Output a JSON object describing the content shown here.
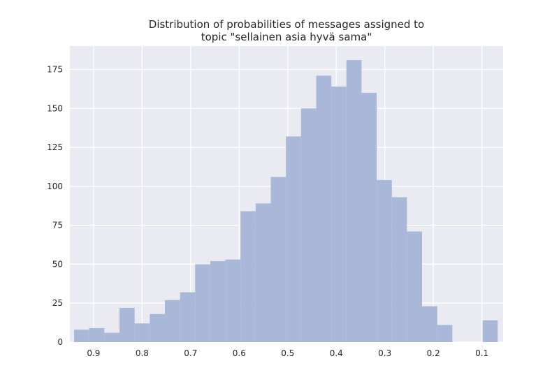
{
  "chart_data": {
    "type": "bar",
    "title_lines": [
      "Distribution of probabilities of messages assigned to",
      "topic \"sellainen asia hyvä sama\""
    ],
    "xlabel": "",
    "ylabel": "",
    "x_axis_reversed": true,
    "xlim": [
      0.9488,
      0.0563
    ],
    "ylim": [
      0,
      190
    ],
    "x_ticks": [
      0.9,
      0.8,
      0.7,
      0.6,
      0.5,
      0.4,
      0.3,
      0.2,
      0.1
    ],
    "x_tick_labels": [
      "0.9",
      "0.8",
      "0.7",
      "0.6",
      "0.5",
      "0.4",
      "0.3",
      "0.2",
      "0.1"
    ],
    "y_ticks": [
      0,
      25,
      50,
      75,
      100,
      125,
      150,
      175
    ],
    "y_tick_labels": [
      "0",
      "25",
      "50",
      "75",
      "100",
      "125",
      "150",
      "175"
    ],
    "grid": true,
    "background": "#eaeaf2",
    "bar_color": "#a9b8d8",
    "bins": [
      {
        "x_start": 0.9401,
        "x_end": 0.9089,
        "count": 8
      },
      {
        "x_start": 0.9089,
        "x_end": 0.8778,
        "count": 9
      },
      {
        "x_start": 0.8778,
        "x_end": 0.8466,
        "count": 6
      },
      {
        "x_start": 0.8466,
        "x_end": 0.8154,
        "count": 22
      },
      {
        "x_start": 0.8154,
        "x_end": 0.7843,
        "count": 12
      },
      {
        "x_start": 0.7843,
        "x_end": 0.7531,
        "count": 18
      },
      {
        "x_start": 0.7531,
        "x_end": 0.7219,
        "count": 27
      },
      {
        "x_start": 0.7219,
        "x_end": 0.6907,
        "count": 32
      },
      {
        "x_start": 0.6907,
        "x_end": 0.6596,
        "count": 50
      },
      {
        "x_start": 0.6596,
        "x_end": 0.6284,
        "count": 52
      },
      {
        "x_start": 0.6284,
        "x_end": 0.5972,
        "count": 53
      },
      {
        "x_start": 0.5972,
        "x_end": 0.5661,
        "count": 84
      },
      {
        "x_start": 0.5661,
        "x_end": 0.5349,
        "count": 89
      },
      {
        "x_start": 0.5349,
        "x_end": 0.5037,
        "count": 106
      },
      {
        "x_start": 0.5037,
        "x_end": 0.4726,
        "count": 132
      },
      {
        "x_start": 0.4726,
        "x_end": 0.4414,
        "count": 150
      },
      {
        "x_start": 0.4414,
        "x_end": 0.4102,
        "count": 171
      },
      {
        "x_start": 0.4102,
        "x_end": 0.3791,
        "count": 164
      },
      {
        "x_start": 0.3791,
        "x_end": 0.3479,
        "count": 181
      },
      {
        "x_start": 0.3479,
        "x_end": 0.3167,
        "count": 160
      },
      {
        "x_start": 0.3167,
        "x_end": 0.2855,
        "count": 104
      },
      {
        "x_start": 0.2855,
        "x_end": 0.2544,
        "count": 93
      },
      {
        "x_start": 0.2544,
        "x_end": 0.2232,
        "count": 71
      },
      {
        "x_start": 0.2232,
        "x_end": 0.192,
        "count": 23
      },
      {
        "x_start": 0.192,
        "x_end": 0.1609,
        "count": 11
      },
      {
        "x_start": 0.1609,
        "x_end": 0.1297,
        "count": 0
      },
      {
        "x_start": 0.1297,
        "x_end": 0.0985,
        "count": 0
      },
      {
        "x_start": 0.0985,
        "x_end": 0.0674,
        "count": 14
      }
    ]
  }
}
